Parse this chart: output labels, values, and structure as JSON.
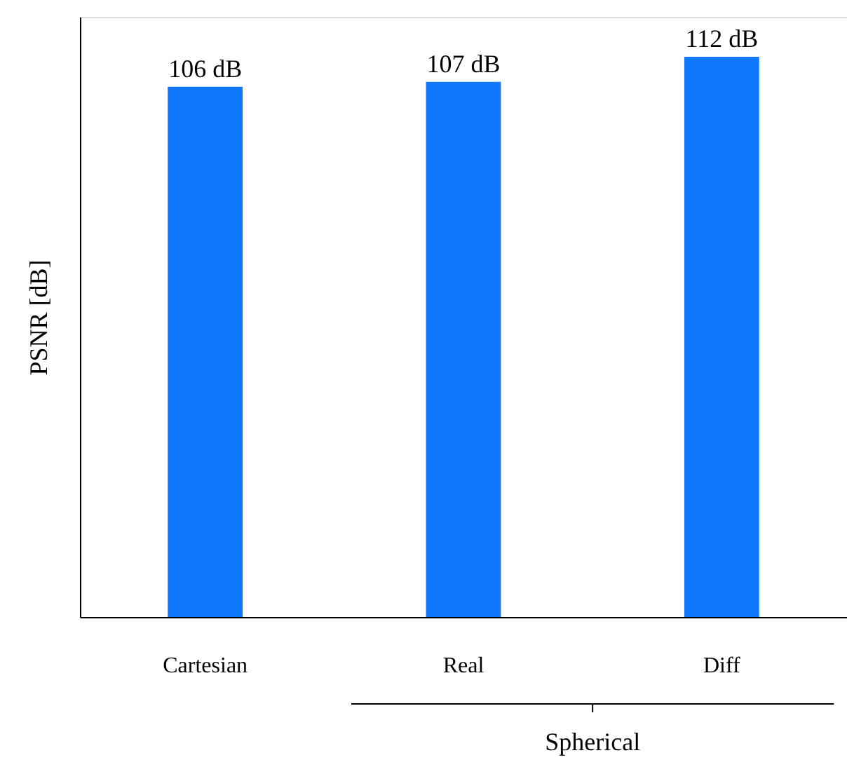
{
  "chart_data": {
    "type": "bar",
    "ylabel": "PSNR [dB]",
    "categories": [
      "Cartesian",
      "Real",
      "Diff"
    ],
    "values": [
      106,
      107,
      112
    ],
    "value_labels": [
      "106 dB",
      "107 dB",
      "112 dB"
    ],
    "color": "#1177fc",
    "ylim": [
      0,
      120
    ],
    "tick_labels": "x",
    "annotations": [
      "Spherical"
    ]
  }
}
